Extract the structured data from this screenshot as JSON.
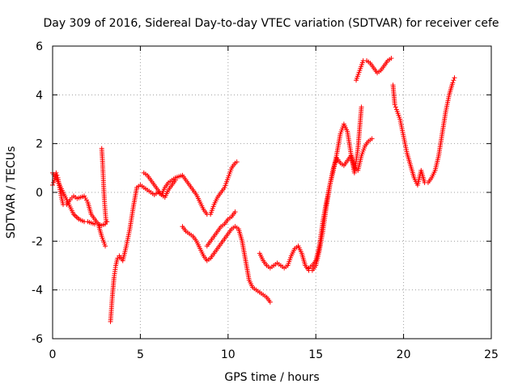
{
  "chart_data": {
    "type": "scatter",
    "title": "Day 309 of 2016, Sidereal Day-to-day VTEC variation (SDTVAR) for receiver cefe",
    "xlabel": "GPS time / hours",
    "ylabel": "SDTVAR / TECUs",
    "xlim": [
      0,
      25
    ],
    "ylim": [
      -6,
      6
    ],
    "xticks": [
      0,
      5,
      10,
      15,
      20,
      25
    ],
    "yticks": [
      -6,
      -4,
      -2,
      0,
      2,
      4,
      6
    ],
    "xtick_labels": [
      "0",
      "5",
      "10",
      "15",
      "20",
      "25"
    ],
    "ytick_labels": [
      "-6",
      "-4",
      "-2",
      "0",
      "2",
      "4",
      "6"
    ],
    "grid": true,
    "marker": "plus",
    "color": "#ff0000",
    "series": [
      {
        "x": [
          0.0,
          0.1,
          0.2,
          0.3,
          0.4,
          0.5,
          0.6,
          0.8,
          1.0,
          1.2,
          1.4,
          1.6,
          1.8,
          2.0,
          2.2,
          2.4,
          2.6,
          2.8,
          3.0
        ],
        "y": [
          0.3,
          0.5,
          0.8,
          0.6,
          0.2,
          -0.2,
          -0.5,
          -0.5,
          -0.3,
          -0.15,
          -0.25,
          -0.2,
          -0.15,
          -0.4,
          -0.9,
          -1.1,
          -1.3,
          -1.8,
          -2.2
        ]
      },
      {
        "x": [
          0.0,
          0.2,
          0.4,
          0.6,
          0.8,
          1.0,
          1.2,
          1.5,
          1.8,
          2.0,
          2.2,
          2.4,
          2.6,
          2.8,
          3.0,
          3.1
        ],
        "y": [
          0.8,
          0.6,
          0.3,
          0.0,
          -0.3,
          -0.6,
          -0.9,
          -1.1,
          -1.2,
          -1.2,
          -1.25,
          -1.3,
          -1.3,
          -1.35,
          -1.3,
          -1.2
        ]
      },
      {
        "x": [
          2.8,
          2.85,
          2.9,
          2.95,
          3.0,
          3.05
        ],
        "y": [
          1.8,
          1.2,
          0.4,
          -0.3,
          -0.8,
          -1.2
        ]
      },
      {
        "x": [
          3.3,
          3.4,
          3.5,
          3.6,
          3.7,
          3.8,
          4.0,
          4.2,
          4.4,
          4.6,
          4.8,
          5.0,
          5.2,
          5.4,
          5.6,
          5.8,
          6.0,
          6.2,
          6.4,
          6.6,
          6.8,
          7.0,
          7.2,
          7.4,
          7.6,
          7.8,
          8.0,
          8.2,
          8.4,
          8.6,
          8.8,
          9.0,
          9.2,
          9.4,
          9.6,
          9.8,
          10.0,
          10.2,
          10.4,
          10.5
        ],
        "y": [
          -5.3,
          -4.3,
          -3.5,
          -3.0,
          -2.7,
          -2.6,
          -2.8,
          -2.2,
          -1.5,
          -0.6,
          0.2,
          0.3,
          0.2,
          0.1,
          0.0,
          -0.1,
          0.0,
          -0.1,
          0.2,
          0.4,
          0.5,
          0.6,
          0.65,
          0.7,
          0.5,
          0.3,
          0.1,
          -0.1,
          -0.4,
          -0.7,
          -0.9,
          -0.9,
          -0.5,
          -0.2,
          0.0,
          0.2,
          0.6,
          1.0,
          1.2,
          1.25
        ]
      },
      {
        "x": [
          5.2,
          5.4,
          5.6,
          5.8,
          6.0,
          6.2,
          6.4,
          6.6,
          6.8,
          7.0
        ],
        "y": [
          0.8,
          0.7,
          0.5,
          0.3,
          0.1,
          -0.1,
          -0.2,
          0.1,
          0.3,
          0.5
        ]
      },
      {
        "x": [
          7.4,
          7.6,
          7.8,
          8.0,
          8.2,
          8.4,
          8.6,
          8.8,
          9.0,
          9.2,
          9.4,
          9.6,
          9.8,
          10.0,
          10.2,
          10.4,
          10.6,
          10.8,
          11.0,
          11.2,
          11.4,
          11.6,
          11.8,
          12.0,
          12.2,
          12.4
        ],
        "y": [
          -1.4,
          -1.6,
          -1.7,
          -1.8,
          -2.0,
          -2.3,
          -2.6,
          -2.8,
          -2.7,
          -2.5,
          -2.3,
          -2.1,
          -1.9,
          -1.7,
          -1.5,
          -1.4,
          -1.5,
          -2.0,
          -2.8,
          -3.6,
          -3.9,
          -4.0,
          -4.1,
          -4.2,
          -4.3,
          -4.5
        ]
      },
      {
        "x": [
          8.8,
          9.0,
          9.2,
          9.4,
          9.6,
          9.8,
          10.0,
          10.2,
          10.4
        ],
        "y": [
          -2.2,
          -2.0,
          -1.8,
          -1.6,
          -1.4,
          -1.3,
          -1.1,
          -1.0,
          -0.8
        ]
      },
      {
        "x": [
          11.8,
          12.0,
          12.2,
          12.4,
          12.6,
          12.8,
          13.0,
          13.2,
          13.4,
          13.6,
          13.8,
          14.0,
          14.2,
          14.4,
          14.6,
          14.8,
          15.0,
          15.2,
          15.4,
          15.6,
          15.8,
          16.0,
          16.2,
          16.4,
          16.6,
          16.8,
          17.0,
          17.2,
          17.4,
          17.6,
          17.8,
          18.0,
          18.2
        ],
        "y": [
          -2.5,
          -2.8,
          -3.0,
          -3.1,
          -3.0,
          -2.9,
          -3.0,
          -3.1,
          -3.0,
          -2.6,
          -2.3,
          -2.2,
          -2.5,
          -3.0,
          -3.2,
          -3.2,
          -3.0,
          -2.4,
          -1.6,
          -0.6,
          0.3,
          1.0,
          1.4,
          1.2,
          1.1,
          1.3,
          1.5,
          1.0,
          0.9,
          1.5,
          1.9,
          2.1,
          2.2
        ]
      },
      {
        "x": [
          14.6,
          14.8,
          15.0,
          15.2,
          15.4,
          15.6,
          15.8,
          16.0,
          16.2,
          16.4,
          16.6,
          16.8,
          17.0,
          17.2,
          17.4,
          17.6
        ],
        "y": [
          -3.1,
          -3.0,
          -2.8,
          -2.2,
          -1.2,
          -0.4,
          0.3,
          0.9,
          1.6,
          2.4,
          2.8,
          2.5,
          1.6,
          0.8,
          1.8,
          3.5
        ]
      },
      {
        "x": [
          17.3,
          17.5,
          17.7,
          17.9,
          18.1,
          18.3,
          18.5,
          18.7,
          18.9,
          19.1,
          19.3
        ],
        "y": [
          4.6,
          5.0,
          5.4,
          5.4,
          5.3,
          5.1,
          4.9,
          5.0,
          5.2,
          5.4,
          5.5
        ]
      },
      {
        "x": [
          19.4,
          19.5,
          19.6,
          19.8,
          20.0,
          20.2,
          20.4,
          20.6,
          20.8,
          21.0,
          21.2,
          21.4,
          21.6,
          21.8,
          22.0,
          22.2,
          22.4,
          22.6,
          22.8,
          22.9
        ],
        "y": [
          4.4,
          3.6,
          3.4,
          3.0,
          2.3,
          1.6,
          1.1,
          0.6,
          0.3,
          0.9,
          0.4,
          0.4,
          0.6,
          0.9,
          1.5,
          2.4,
          3.3,
          4.0,
          4.5,
          4.7
        ]
      }
    ]
  }
}
